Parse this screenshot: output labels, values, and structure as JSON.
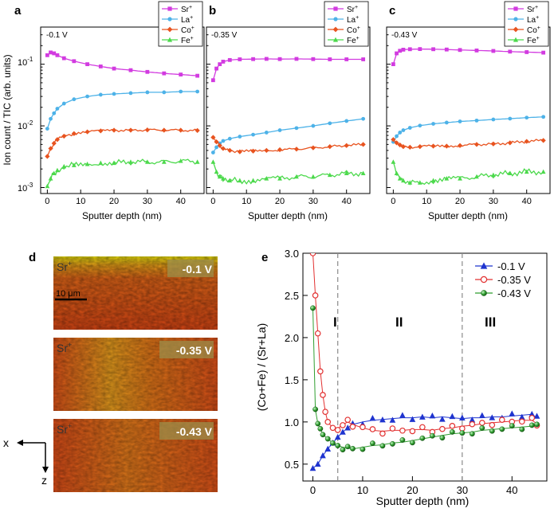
{
  "figure": {
    "colors": {
      "sr": "#d23be0",
      "la": "#4db2e8",
      "co": "#e8531f",
      "fe": "#4cd94c",
      "v01": "#1f34cf",
      "v035": "#e23030",
      "v043": "#2f9e2f",
      "grey": "#8a8a8a"
    },
    "panels_top": [
      {
        "letter": "a",
        "voltage": "-0.1 V"
      },
      {
        "letter": "b",
        "voltage": "-0.35 V"
      },
      {
        "letter": "c",
        "voltage": "-0.43 V"
      }
    ],
    "legend_top": [
      {
        "label_main": "Sr",
        "label_sup": "+",
        "color": "#d23be0",
        "marker": "square"
      },
      {
        "label_main": "La",
        "label_sup": "+",
        "color": "#4db2e8",
        "marker": "circle"
      },
      {
        "label_main": "Co",
        "label_sup": "+",
        "color": "#e8531f",
        "marker": "diamond"
      },
      {
        "label_main": "Fe",
        "label_sup": "+",
        "color": "#4cd94c",
        "marker": "triangle"
      }
    ],
    "top_ylabel": "Ion count / TIC (arb. units)",
    "top_xlabel": "Sputter depth (nm)",
    "top_x_ticks": [
      "0",
      "10",
      "20",
      "30",
      "40"
    ],
    "top_y_ticks": [
      {
        "base": "10",
        "exp": "-1"
      },
      {
        "base": "10",
        "exp": "-2"
      },
      {
        "base": "10",
        "exp": "-3"
      }
    ],
    "panel_d": {
      "letter": "d",
      "images": [
        {
          "ion_main": "Sr",
          "ion_sup": "+",
          "voltage": "-0.1 V"
        },
        {
          "ion_main": "Sr",
          "ion_sup": "+",
          "voltage": "-0.35 V"
        },
        {
          "ion_main": "Sr",
          "ion_sup": "+",
          "voltage": "-0.43 V"
        }
      ],
      "scalebar": "10 μm",
      "axis_x": "x",
      "axis_z": "z"
    },
    "panel_e": {
      "letter": "e",
      "ylabel": "(Co+Fe) / (Sr+La)",
      "xlabel": "Sputter depth (nm)",
      "x_ticks": [
        "0",
        "10",
        "20",
        "30",
        "40"
      ],
      "y_ticks": [
        "0.5",
        "1.0",
        "1.5",
        "2.0",
        "2.5",
        "3.0"
      ],
      "regions": [
        "I",
        "II",
        "III"
      ],
      "legend": [
        {
          "label": "-0.1 V",
          "color": "#1f34cf",
          "marker": "triangle"
        },
        {
          "label": "-0.35 V",
          "color": "#e23030",
          "marker": "open-circle"
        },
        {
          "label": "-0.43 V",
          "color": "#2f9e2f",
          "marker": "ball"
        }
      ]
    }
  },
  "chart_data": [
    {
      "type": "line",
      "panel": "a",
      "yscale": "log",
      "xlabel": "Sputter depth (nm)",
      "ylabel": "Ion count / TIC (arb. units)",
      "xlim": [
        -2,
        47
      ],
      "ylim": [
        0.0008,
        0.4
      ],
      "annotation": "-0.1 V",
      "series": [
        {
          "name": "Sr+",
          "x": [
            0,
            1,
            2,
            3,
            5,
            8,
            12,
            16,
            20,
            25,
            30,
            35,
            40,
            45
          ],
          "y": [
            0.14,
            0.155,
            0.15,
            0.14,
            0.125,
            0.112,
            0.1,
            0.092,
            0.085,
            0.08,
            0.075,
            0.071,
            0.068,
            0.065
          ]
        },
        {
          "name": "La+",
          "x": [
            0,
            1,
            2,
            3,
            5,
            8,
            12,
            16,
            20,
            25,
            30,
            35,
            40,
            45
          ],
          "y": [
            0.009,
            0.013,
            0.016,
            0.019,
            0.023,
            0.027,
            0.03,
            0.032,
            0.033,
            0.034,
            0.035,
            0.035,
            0.036,
            0.036
          ]
        },
        {
          "name": "Co+",
          "x": [
            0,
            1,
            2,
            3,
            5,
            8,
            12,
            16,
            20,
            25,
            30,
            35,
            40,
            45
          ],
          "y": [
            0.0032,
            0.0043,
            0.0052,
            0.006,
            0.0068,
            0.0075,
            0.008,
            0.0083,
            0.0085,
            0.0085,
            0.0086,
            0.0085,
            0.0085,
            0.0084
          ]
        },
        {
          "name": "Fe+",
          "x": [
            0,
            1,
            2,
            3,
            5,
            8,
            12,
            16,
            20,
            25,
            30,
            35,
            40,
            45
          ],
          "y": [
            0.00105,
            0.0014,
            0.0017,
            0.0019,
            0.0022,
            0.0023,
            0.0024,
            0.0025,
            0.0025,
            0.0026,
            0.0026,
            0.0026,
            0.0027,
            0.0026
          ]
        }
      ]
    },
    {
      "type": "line",
      "panel": "b",
      "yscale": "log",
      "xlabel": "Sputter depth (nm)",
      "xlim": [
        -2,
        47
      ],
      "ylim": [
        0.0008,
        0.4
      ],
      "annotation": "-0.35 V",
      "series": [
        {
          "name": "Sr+",
          "x": [
            0,
            1,
            2,
            3,
            5,
            8,
            12,
            16,
            20,
            25,
            30,
            35,
            40,
            45
          ],
          "y": [
            0.055,
            0.085,
            0.1,
            0.11,
            0.117,
            0.12,
            0.121,
            0.122,
            0.121,
            0.122,
            0.121,
            0.12,
            0.12,
            0.12
          ]
        },
        {
          "name": "La+",
          "x": [
            0,
            1,
            2,
            3,
            5,
            8,
            12,
            16,
            20,
            25,
            30,
            35,
            40,
            45
          ],
          "y": [
            0.0037,
            0.0045,
            0.0052,
            0.0057,
            0.0062,
            0.0067,
            0.0072,
            0.0078,
            0.0085,
            0.0092,
            0.01,
            0.011,
            0.012,
            0.013
          ]
        },
        {
          "name": "Co+",
          "x": [
            0,
            1,
            2,
            3,
            5,
            8,
            12,
            16,
            20,
            25,
            30,
            35,
            40,
            45
          ],
          "y": [
            0.0065,
            0.0055,
            0.0048,
            0.0043,
            0.004,
            0.0038,
            0.0039,
            0.004,
            0.0041,
            0.0042,
            0.0044,
            0.0046,
            0.0048,
            0.005
          ]
        },
        {
          "name": "Fe+",
          "x": [
            0,
            1,
            2,
            3,
            5,
            8,
            12,
            16,
            20,
            25,
            30,
            35,
            40,
            45
          ],
          "y": [
            0.0026,
            0.0018,
            0.0015,
            0.0014,
            0.0013,
            0.0013,
            0.0013,
            0.0014,
            0.0014,
            0.0015,
            0.0015,
            0.0016,
            0.0017,
            0.0017
          ]
        }
      ]
    },
    {
      "type": "line",
      "panel": "c",
      "yscale": "log",
      "xlabel": "Sputter depth (nm)",
      "xlim": [
        -2,
        47
      ],
      "ylim": [
        0.0008,
        0.4
      ],
      "annotation": "-0.43 V",
      "series": [
        {
          "name": "Sr+",
          "x": [
            0,
            1,
            2,
            3,
            5,
            8,
            12,
            16,
            20,
            25,
            30,
            35,
            40,
            45
          ],
          "y": [
            0.1,
            0.15,
            0.165,
            0.172,
            0.175,
            0.176,
            0.175,
            0.173,
            0.17,
            0.167,
            0.164,
            0.16,
            0.157,
            0.154
          ]
        },
        {
          "name": "La+",
          "x": [
            0,
            1,
            2,
            3,
            5,
            8,
            12,
            16,
            20,
            25,
            30,
            35,
            40,
            45
          ],
          "y": [
            0.0055,
            0.0068,
            0.0078,
            0.0085,
            0.0093,
            0.0101,
            0.0108,
            0.0113,
            0.0118,
            0.0122,
            0.0127,
            0.0131,
            0.0136,
            0.014
          ]
        },
        {
          "name": "Co+",
          "x": [
            0,
            1,
            2,
            3,
            5,
            8,
            12,
            16,
            20,
            25,
            30,
            35,
            40,
            45
          ],
          "y": [
            0.006,
            0.0053,
            0.0049,
            0.0046,
            0.0045,
            0.0046,
            0.0047,
            0.0047,
            0.0048,
            0.005,
            0.0051,
            0.0053,
            0.0056,
            0.0058
          ]
        },
        {
          "name": "Fe+",
          "x": [
            0,
            1,
            2,
            3,
            5,
            8,
            12,
            16,
            20,
            25,
            30,
            35,
            40,
            45
          ],
          "y": [
            0.0026,
            0.0017,
            0.0014,
            0.0013,
            0.0012,
            0.0012,
            0.0013,
            0.0014,
            0.0014,
            0.0015,
            0.0016,
            0.0017,
            0.0018,
            0.0018
          ]
        }
      ]
    },
    {
      "type": "scatter",
      "panel": "e",
      "xlabel": "Sputter depth (nm)",
      "ylabel": "(Co+Fe) / (Sr+La)",
      "xlim": [
        -2,
        47
      ],
      "ylim": [
        0.3,
        3.0
      ],
      "vlines": [
        5,
        30
      ],
      "series": [
        {
          "name": "-0.1 V",
          "x": [
            0,
            1,
            2,
            3,
            4,
            5,
            6,
            7,
            8,
            10,
            12,
            14,
            16,
            18,
            20,
            22,
            24,
            26,
            28,
            30,
            32,
            34,
            36,
            38,
            40,
            42,
            44,
            45
          ],
          "y": [
            0.45,
            0.5,
            0.6,
            0.68,
            0.75,
            0.82,
            0.88,
            0.93,
            0.97,
            1.0,
            1.02,
            1.03,
            1.04,
            1.05,
            1.05,
            1.06,
            1.05,
            1.06,
            1.05,
            1.04,
            1.05,
            1.05,
            1.06,
            1.06,
            1.07,
            1.08,
            1.09,
            1.05
          ]
        },
        {
          "name": "-0.35 V",
          "x": [
            0,
            0.5,
            1,
            1.5,
            2,
            2.5,
            3,
            4,
            5,
            6,
            7,
            8,
            10,
            12,
            14,
            16,
            18,
            20,
            22,
            24,
            26,
            28,
            30,
            32,
            34,
            36,
            38,
            40,
            42,
            44,
            45
          ],
          "y": [
            3.0,
            2.5,
            2.05,
            1.6,
            1.32,
            1.12,
            1.0,
            0.93,
            0.92,
            0.97,
            1.0,
            0.97,
            0.93,
            0.9,
            0.89,
            0.9,
            0.9,
            0.91,
            0.91,
            0.9,
            0.92,
            0.93,
            0.95,
            0.96,
            0.98,
            0.99,
            1.0,
            1.01,
            1.02,
            1.02,
            0.98
          ]
        },
        {
          "name": "-0.43 V",
          "x": [
            0,
            0.5,
            1,
            1.5,
            2,
            3,
            4,
            5,
            6,
            7,
            8,
            10,
            12,
            14,
            16,
            18,
            20,
            22,
            24,
            26,
            28,
            30,
            32,
            34,
            36,
            38,
            40,
            42,
            44,
            45
          ],
          "y": [
            2.35,
            1.15,
            0.98,
            0.92,
            0.85,
            0.8,
            0.75,
            0.72,
            0.7,
            0.69,
            0.68,
            0.7,
            0.72,
            0.73,
            0.75,
            0.76,
            0.78,
            0.8,
            0.82,
            0.84,
            0.86,
            0.87,
            0.88,
            0.9,
            0.91,
            0.92,
            0.93,
            0.94,
            0.95,
            0.96
          ]
        }
      ]
    }
  ]
}
